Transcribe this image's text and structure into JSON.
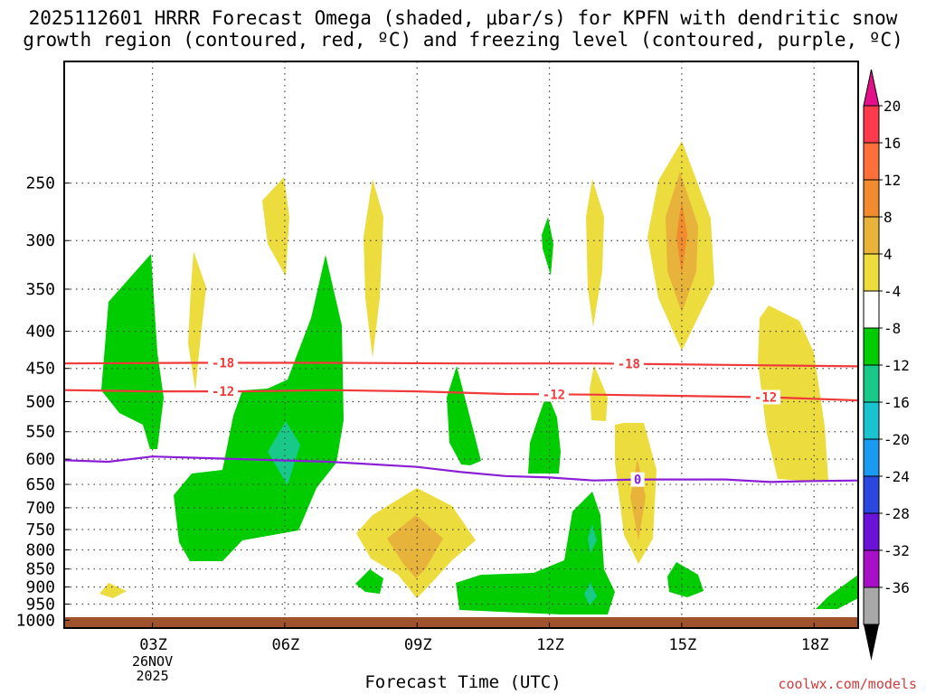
{
  "chart_data": {
    "type": "contour",
    "title_line1": "2025112601 HRRR Forecast Omega (shaded, μbar/s) for KPFN with dendritic snow",
    "title_line2": "growth region (contoured, red, ºC) and freezing level (contoured, purple, ºC)",
    "xlabel": "Forecast Time (UTC)",
    "x_ticks": [
      {
        "hour": 3,
        "label": "03Z",
        "sub": [
          "26NOV",
          "2025"
        ]
      },
      {
        "hour": 6,
        "label": "06Z"
      },
      {
        "hour": 9,
        "label": "09Z"
      },
      {
        "hour": 12,
        "label": "12Z"
      },
      {
        "hour": 15,
        "label": "15Z"
      },
      {
        "hour": 18,
        "label": "18Z"
      }
    ],
    "x_range": [
      1,
      19
    ],
    "y_axis": "pressure (hPa, log scale)",
    "y_range": [
      1025,
      170
    ],
    "y_ticks": [
      250,
      300,
      350,
      400,
      450,
      500,
      550,
      600,
      650,
      700,
      750,
      800,
      850,
      900,
      950,
      1000
    ],
    "colorbar": {
      "levels": [
        20,
        16,
        12,
        8,
        4,
        -4,
        -8,
        -12,
        -16,
        -20,
        -24,
        -28,
        -32,
        -36
      ],
      "colors": [
        "#ff3a4c",
        "#ff6f3a",
        "#f28a2e",
        "#e8b33a",
        "#ecdc3e",
        "#ffffff",
        "#00cc00",
        "#19c98a",
        "#19c4cf",
        "#1a9af0",
        "#2a48e0",
        "#6a12d8",
        "#a810c8",
        "#a8a8a8"
      ],
      "top_arrow_color": "#e4108a",
      "bottom_arrow_color": "#000000"
    },
    "contours": [
      {
        "name": "dgz-minus-18",
        "value": -18,
        "label": "-18",
        "color": "#f03a3a",
        "points": [
          [
            1,
            443
          ],
          [
            4,
            442
          ],
          [
            7,
            442
          ],
          [
            10,
            443
          ],
          [
            13,
            443
          ],
          [
            16,
            445
          ],
          [
            19,
            447
          ]
        ],
        "label_hours": [
          4.6,
          13.8
        ]
      },
      {
        "name": "dgz-minus-12",
        "value": -12,
        "label": "-12",
        "color": "#f03a3a",
        "points": [
          [
            1,
            482
          ],
          [
            3,
            484
          ],
          [
            5,
            484
          ],
          [
            7,
            482
          ],
          [
            9,
            484
          ],
          [
            11,
            488
          ],
          [
            13,
            489
          ],
          [
            15,
            491
          ],
          [
            17,
            493
          ],
          [
            19,
            498
          ]
        ],
        "label_hours": [
          4.6,
          12.1,
          16.9
        ]
      },
      {
        "name": "freezing-level",
        "value": 0,
        "label": "0",
        "color": "#8a1ed6",
        "points": [
          [
            1,
            602
          ],
          [
            2,
            605
          ],
          [
            3,
            595
          ],
          [
            5,
            600
          ],
          [
            7,
            605
          ],
          [
            9,
            615
          ],
          [
            10,
            625
          ],
          [
            11,
            633
          ],
          [
            12,
            636
          ],
          [
            13,
            642
          ],
          [
            14,
            640
          ],
          [
            15,
            640
          ],
          [
            16,
            640
          ],
          [
            17,
            645
          ],
          [
            18,
            643
          ],
          [
            19,
            642
          ]
        ],
        "label_hours": [
          14
        ]
      }
    ]
  },
  "credit": "coolwx.com/models"
}
